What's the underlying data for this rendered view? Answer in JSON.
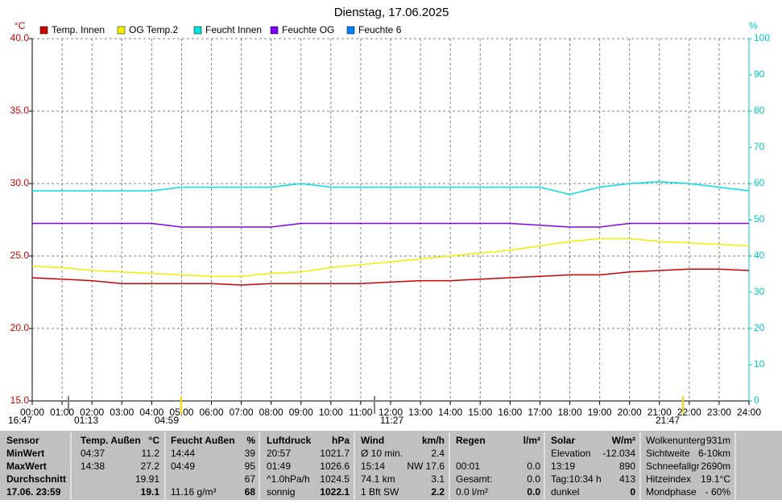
{
  "chart_data": {
    "type": "line",
    "title": "Dienstag, 17.06.2025",
    "y_unit": "°C",
    "y2_unit": "%",
    "x": [
      0,
      1,
      2,
      3,
      4,
      5,
      6,
      7,
      8,
      9,
      10,
      11,
      12,
      13,
      14,
      15,
      16,
      17,
      18,
      19,
      20,
      21,
      22,
      23,
      24
    ],
    "xlim": [
      0,
      24
    ],
    "xticks": [
      {
        "value": 0,
        "label": "00:00"
      },
      {
        "value": 1,
        "label": "01:00"
      },
      {
        "value": 2,
        "label": "02:00"
      },
      {
        "value": 3,
        "label": "03:00"
      },
      {
        "value": 4,
        "label": "04:00"
      },
      {
        "value": 5,
        "label": "05:00"
      },
      {
        "value": 6,
        "label": "06:00"
      },
      {
        "value": 7,
        "label": "07:00"
      },
      {
        "value": 8,
        "label": "08:00"
      },
      {
        "value": 9,
        "label": "09:00"
      },
      {
        "value": 10,
        "label": "10:00"
      },
      {
        "value": 11,
        "label": "11:00"
      },
      {
        "value": 12,
        "label": "12:00"
      },
      {
        "value": 13,
        "label": "13:00"
      },
      {
        "value": 14,
        "label": "14:00"
      },
      {
        "value": 15,
        "label": "15:00"
      },
      {
        "value": 16,
        "label": "16:00"
      },
      {
        "value": 17,
        "label": "17:00"
      },
      {
        "value": 18,
        "label": "18:00"
      },
      {
        "value": 19,
        "label": "19:00"
      },
      {
        "value": 20,
        "label": "20:00"
      },
      {
        "value": 21,
        "label": "21:00"
      },
      {
        "value": 22,
        "label": "22:00"
      },
      {
        "value": 23,
        "label": "23:00"
      },
      {
        "value": 24,
        "label": "24:00"
      }
    ],
    "ylim": [
      15,
      40
    ],
    "yticks": [
      {
        "value": 15,
        "label": "15.0"
      },
      {
        "value": 20,
        "label": "20.0"
      },
      {
        "value": 25,
        "label": "25.0"
      },
      {
        "value": 30,
        "label": "30.0"
      },
      {
        "value": 35,
        "label": "35.0"
      },
      {
        "value": 40,
        "label": "40.0"
      }
    ],
    "y2lim": [
      0,
      100
    ],
    "y2ticks": [
      0,
      10,
      20,
      30,
      40,
      50,
      60,
      70,
      80,
      90,
      100
    ],
    "grid": true,
    "series": [
      {
        "name": "Temp. Innen",
        "color": "#cc0000",
        "values": [
          23.5,
          23.4,
          23.3,
          23.1,
          23.1,
          23.1,
          23.1,
          23.0,
          23.1,
          23.1,
          23.1,
          23.1,
          23.2,
          23.3,
          23.3,
          23.4,
          23.5,
          23.6,
          23.7,
          23.7,
          23.9,
          24.0,
          24.1,
          24.1,
          24.0
        ]
      },
      {
        "name": "OG Temp.2",
        "color": "#f0f000",
        "values": [
          24.3,
          24.2,
          24.0,
          23.9,
          23.8,
          23.7,
          23.6,
          23.6,
          23.8,
          23.9,
          24.2,
          24.4,
          24.6,
          24.8,
          25.0,
          25.2,
          25.4,
          25.7,
          26.0,
          26.2,
          26.2,
          26.0,
          25.9,
          25.8,
          25.7
        ]
      },
      {
        "name": "Feucht Innen",
        "color": "#00e0e0",
        "axis": "y2",
        "values": [
          58,
          58,
          58,
          58,
          58,
          59,
          59,
          59,
          59,
          60,
          59,
          59,
          59,
          59,
          59,
          59,
          59,
          59,
          57,
          59,
          60,
          60.5,
          60,
          59,
          58
        ]
      },
      {
        "name": "Feuchte OG",
        "color": "#8000ff",
        "axis": "y2",
        "values": [
          49,
          49,
          49,
          49,
          49,
          48,
          48,
          48,
          48,
          49,
          49,
          49,
          49,
          49,
          49,
          49,
          49,
          48.5,
          48,
          48,
          49,
          49,
          49,
          49,
          49
        ]
      },
      {
        "name": "Feuchte 6",
        "color": "#0080ff",
        "axis": "y2",
        "values": [
          null,
          null,
          null,
          null,
          null,
          null,
          null,
          null,
          null,
          null,
          null,
          null,
          null,
          null,
          null,
          null,
          null,
          null,
          null,
          null,
          null,
          null,
          null,
          null,
          null
        ]
      }
    ],
    "annotations": [
      "16:47",
      "01:13",
      "04:59",
      "11:27",
      "21:47"
    ]
  },
  "table": {
    "rows": [
      [
        "Sensor",
        "Temp. Außen",
        "°C",
        "Feucht Außen",
        "%",
        "Luftdruck",
        "hPa",
        "Wind",
        "km/h",
        "Regen",
        "l/m²",
        "Solar",
        "W/m²",
        "Wolkenunterg",
        "931m"
      ],
      [
        "MinWert",
        "04:37",
        "11.2",
        "14:44",
        "39",
        "20:57",
        "1021.7",
        "Ø 10 min.",
        "2.4",
        null,
        null,
        "Elevation",
        "-12.034",
        "Sichtweite",
        "6-10km"
      ],
      [
        "MaxWert",
        "14:38",
        "27.2",
        "04:49",
        "95",
        "01:49",
        "1026.6",
        "15:14",
        "NW 17.6",
        "00:01",
        "0.0",
        "13:19",
        "890",
        "Schneefallgr",
        "2690m"
      ],
      [
        "Durchschnitt",
        null,
        "19.91",
        null,
        "67",
        "^1.0hPa/h",
        "1024.5",
        "74.1 km",
        "3.1",
        "Gesamt:",
        "0.0",
        "Tag:10:34 h",
        "413",
        "Hitzeindex",
        "19.1°C"
      ],
      [
        "17.06. 23:59",
        null,
        "19.1",
        "11.16 g/m³",
        "68",
        "sonnig",
        "1022.1",
        "1 Bft SW",
        "2.2",
        "0.0 l/m²",
        "0.0",
        "dunkel",
        "0",
        "Mondphase",
        "- 60%"
      ]
    ]
  }
}
